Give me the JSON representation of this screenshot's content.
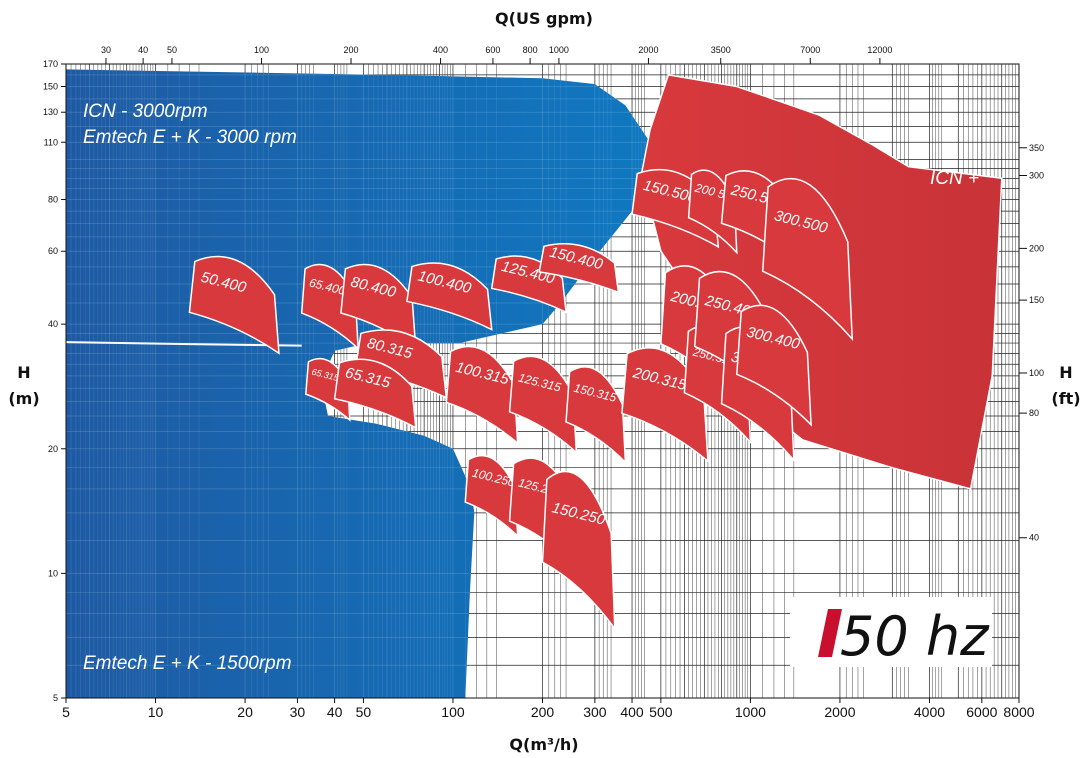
{
  "chart_data": {
    "type": "area",
    "title": "",
    "colors": {
      "blue_zone": "#1b63a8",
      "red_curves": "#d8393d",
      "hz_mark": "#c8102e"
    },
    "x_axis": {
      "label": "Q(m³/h)",
      "scale": "log",
      "range": [
        5,
        8000
      ],
      "ticks": [
        5,
        10,
        20,
        30,
        40,
        50,
        100,
        200,
        300,
        400,
        500,
        1000,
        2000,
        4000,
        6000,
        8000
      ],
      "tick_labels": [
        "5",
        "10",
        "20",
        "30",
        "40",
        "50",
        "100",
        "200",
        "300",
        "400",
        "500",
        "1000",
        "2000",
        "4000",
        "6000",
        "8000"
      ]
    },
    "x2_axis": {
      "label": "Q(US gpm)",
      "scale": "log",
      "ticks": [
        30,
        40,
        50,
        100,
        200,
        400,
        600,
        800,
        1000,
        2000,
        3500,
        7000,
        12000
      ],
      "tick_labels": [
        "30",
        "40",
        "50",
        "100",
        "200",
        "400",
        "600",
        "800",
        "1000",
        "2000",
        "3500",
        "7000",
        "12000"
      ]
    },
    "y_axis": {
      "label_top": "H",
      "label_bottom": "(m)",
      "scale": "log",
      "range": [
        5,
        170
      ],
      "ticks": [
        5,
        10,
        20,
        40,
        60,
        80,
        110,
        130,
        150,
        170
      ],
      "tick_labels": [
        "5",
        "10",
        "20",
        "40",
        "60",
        "80",
        "110",
        "130",
        "150",
        "170"
      ]
    },
    "y2_axis": {
      "label_top": "H",
      "label_bottom": "(ft)",
      "ticks": [
        40,
        80,
        100,
        150,
        200,
        300,
        350
      ],
      "tick_labels": [
        "40",
        "80",
        "100",
        "150",
        "200",
        "300",
        "350"
      ]
    },
    "grid": true,
    "zones": [
      {
        "name": "ICN - 3000rpm",
        "position": "top-left"
      },
      {
        "name": "Emtech E + K - 3000 rpm",
        "position": "top-left"
      },
      {
        "name": "Emtech E + K - 1500rpm",
        "position": "bottom-left"
      },
      {
        "name": "ICN +",
        "position": "top-right"
      }
    ],
    "pump_curves": [
      {
        "label": "50.400",
        "q": [
          13,
          26
        ],
        "h": [
          33,
          61
        ]
      },
      {
        "label": "65.400",
        "q": [
          31,
          48
        ],
        "h": [
          34,
          58
        ]
      },
      {
        "label": "80.400",
        "q": [
          42,
          75
        ],
        "h": [
          34,
          58
        ]
      },
      {
        "label": "100.400",
        "q": [
          70,
          135
        ],
        "h": [
          38,
          58
        ]
      },
      {
        "label": "125.400",
        "q": [
          135,
          240
        ],
        "h": [
          42,
          60
        ]
      },
      {
        "label": "150.400",
        "q": [
          195,
          360
        ],
        "h": [
          47,
          64
        ]
      },
      {
        "label": "80.315",
        "q": [
          47,
          95
        ],
        "h": [
          26,
          40
        ]
      },
      {
        "label": "65.315A",
        "q": [
          32,
          45
        ],
        "h": [
          23,
          34
        ]
      },
      {
        "label": "65.315",
        "q": [
          40,
          75
        ],
        "h": [
          22,
          34
        ]
      },
      {
        "label": "100.315",
        "q": [
          95,
          165
        ],
        "h": [
          20,
          37
        ]
      },
      {
        "label": "125.315",
        "q": [
          155,
          260
        ],
        "h": [
          19,
          35
        ]
      },
      {
        "label": "150.315",
        "q": [
          240,
          380
        ],
        "h": [
          18,
          33
        ]
      },
      {
        "label": "100.250",
        "q": [
          110,
          165
        ],
        "h": [
          12,
          20
        ]
      },
      {
        "label": "125.250",
        "q": [
          155,
          260
        ],
        "h": [
          10,
          20
        ]
      },
      {
        "label": "150.250",
        "q": [
          200,
          350
        ],
        "h": [
          7,
          19
        ]
      },
      {
        "label": "200.315",
        "q": [
          370,
          720
        ],
        "h": [
          18,
          37
        ]
      },
      {
        "label": "200.400",
        "q": [
          500,
          900
        ],
        "h": [
          25,
          59
        ]
      },
      {
        "label": "250.315",
        "q": [
          600,
          1000
        ],
        "h": [
          20,
          42
        ]
      },
      {
        "label": "250.400",
        "q": [
          650,
          1200
        ],
        "h": [
          25,
          57
        ]
      },
      {
        "label": "300.315",
        "q": [
          800,
          1400
        ],
        "h": [
          18,
          42
        ]
      },
      {
        "label": "300.400",
        "q": [
          900,
          1600
        ],
        "h": [
          22,
          47
        ]
      },
      {
        "label": "150.500",
        "q": [
          400,
          780
        ],
        "h": [
          60,
          98
        ]
      },
      {
        "label": "200 500",
        "q": [
          620,
          900
        ],
        "h": [
          58,
          98
        ]
      },
      {
        "label": "250.500",
        "q": [
          800,
          1400
        ],
        "h": [
          55,
          98
        ]
      },
      {
        "label": "300.500",
        "q": [
          1100,
          2200
        ],
        "h": [
          35,
          97
        ]
      }
    ],
    "badge": "50 hz"
  }
}
